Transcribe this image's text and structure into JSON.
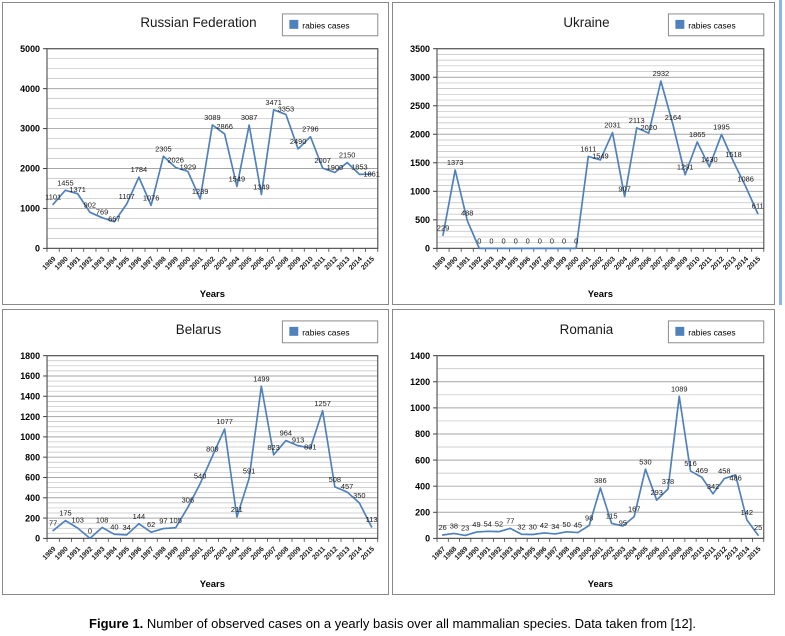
{
  "figure": {
    "caption_label": "Figure 1.",
    "caption_text": "Number of observed cases on a yearly basis over all mammalian species. Data taken from [12]."
  },
  "style": {
    "line_color": "#4F81BD",
    "grid_color": "#bfbfbf",
    "axis_color": "#404040"
  },
  "chart_data": [
    {
      "type": "line",
      "title": "Russian Federation",
      "legend": "rabies cases",
      "xlabel": "Years",
      "ylim": [
        0,
        5000
      ],
      "ytick_major": 1000,
      "ytick_minor": 250,
      "grid": true,
      "legend_position": "top-right",
      "x": [
        1989,
        1990,
        1991,
        1992,
        1993,
        1994,
        1995,
        1996,
        1997,
        1998,
        1999,
        2000,
        2001,
        2002,
        2003,
        2004,
        2005,
        2006,
        2007,
        2008,
        2009,
        2010,
        2011,
        2012,
        2013,
        2014,
        2015
      ],
      "values": [
        1101,
        1455,
        1371,
        902,
        769,
        667,
        1107,
        1784,
        1076,
        2305,
        2026,
        1929,
        1239,
        3089,
        2866,
        1549,
        3087,
        1349,
        3471,
        3353,
        2490,
        2796,
        2007,
        1900,
        2150,
        1853,
        1861
      ]
    },
    {
      "type": "line",
      "title": "Ukraine",
      "legend": "rabies cases",
      "xlabel": "Years",
      "ylim": [
        0,
        3500
      ],
      "ytick_major": 500,
      "ytick_minor": 100,
      "grid": true,
      "legend_position": "top-right",
      "x": [
        1989,
        1990,
        1991,
        1992,
        1993,
        1994,
        1995,
        1996,
        1997,
        1998,
        1999,
        2000,
        2001,
        2002,
        2003,
        2004,
        2005,
        2006,
        2007,
        2008,
        2009,
        2010,
        2011,
        2012,
        2013,
        2014,
        2015
      ],
      "values": [
        229,
        1373,
        488,
        0,
        0,
        0,
        0,
        0,
        0,
        0,
        0,
        0,
        1611,
        1549,
        2031,
        907,
        2113,
        2020,
        2932,
        2164,
        1291,
        1865,
        1430,
        1995,
        1518,
        1086,
        611
      ]
    },
    {
      "type": "line",
      "title": "Belarus",
      "legend": "rabies cases",
      "xlabel": "Years",
      "ylim": [
        0,
        1800
      ],
      "ytick_major": 200,
      "ytick_minor": 50,
      "grid": true,
      "legend_position": "top-right",
      "x": [
        1989,
        1990,
        1991,
        1992,
        1993,
        1994,
        1995,
        1996,
        1997,
        1998,
        1999,
        2000,
        2001,
        2002,
        2003,
        2004,
        2005,
        2006,
        2007,
        2008,
        2009,
        2010,
        2011,
        2012,
        2013,
        2014,
        2015
      ],
      "values": [
        77,
        175,
        103,
        0,
        108,
        40,
        34,
        144,
        62,
        97,
        105,
        306,
        540,
        809,
        1077,
        211,
        591,
        1499,
        823,
        964,
        913,
        891,
        1257,
        508,
        457,
        350,
        113
      ]
    },
    {
      "type": "line",
      "title": "Romania",
      "legend": "rabies cases",
      "xlabel": "Years",
      "ylim": [
        0,
        1400
      ],
      "ytick_major": 200,
      "ytick_minor": 100,
      "grid": true,
      "legend_position": "top-right",
      "x": [
        1987,
        1988,
        1989,
        1990,
        1991,
        1992,
        1993,
        1994,
        1995,
        1996,
        1997,
        1998,
        1999,
        2000,
        2001,
        2002,
        2003,
        2004,
        2005,
        2006,
        2007,
        2008,
        2009,
        2010,
        2011,
        2012,
        2013,
        2014,
        2015
      ],
      "values": [
        26,
        38,
        23,
        49,
        54,
        52,
        77,
        32,
        30,
        42,
        34,
        50,
        45,
        98,
        386,
        115,
        95,
        167,
        530,
        293,
        378,
        1089,
        516,
        469,
        342,
        458,
        486,
        142,
        25
      ]
    }
  ]
}
